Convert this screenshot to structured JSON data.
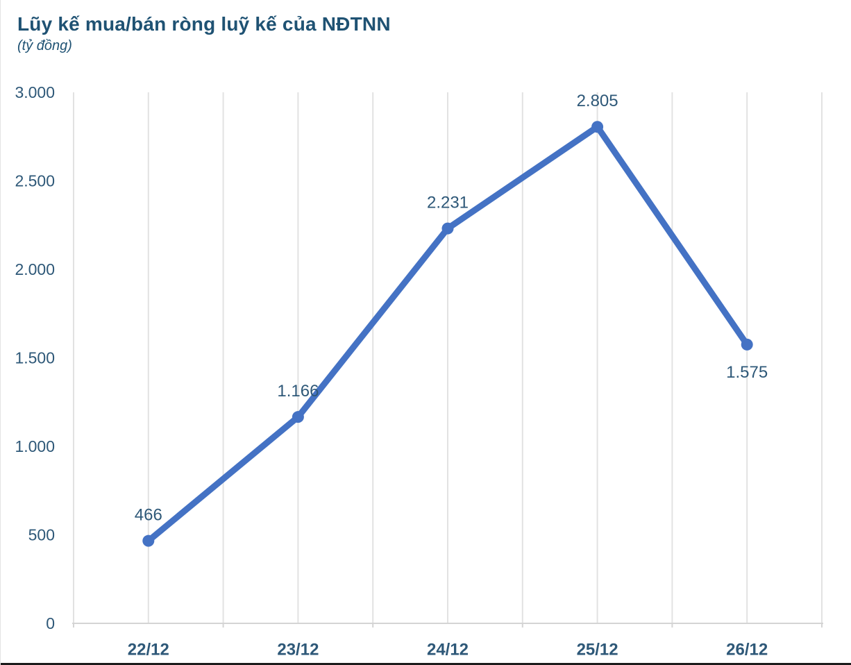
{
  "header": {
    "title": "Lũy kế mua/bán ròng luỹ kế của NĐTNN",
    "subtitle": "(tỷ đồng)"
  },
  "chart_data": {
    "type": "line",
    "title": "Lũy kế mua/bán ròng luỹ kế của NĐTNN",
    "subtitle": "(tỷ đồng)",
    "xlabel": "",
    "ylabel": "tỷ đồng",
    "categories": [
      "22/12",
      "23/12",
      "24/12",
      "25/12",
      "26/12"
    ],
    "series": [
      {
        "name": "Lũy kế mua/bán ròng của NĐTNN",
        "values": [
          466,
          1166,
          2231,
          2805,
          1575
        ]
      }
    ],
    "point_labels": [
      "466",
      "1.166",
      "2.231",
      "2.805",
      "1.575"
    ],
    "point_label_positions": [
      "above",
      "above",
      "above",
      "above",
      "below"
    ],
    "ylim": [
      0,
      3000
    ],
    "ytick_values": [
      0,
      500,
      1000,
      1500,
      2000,
      2500,
      3000
    ],
    "ytick_labels": [
      "0",
      "500",
      "1.000",
      "1.500",
      "2.000",
      "2.500",
      "3.000"
    ],
    "grid": "vertical-only",
    "legend": "none",
    "colors": {
      "line": "#4472C4",
      "marker": "#4472C4",
      "title": "#1F5273",
      "axis_text": "#2E5878",
      "data_label": "#2E5878",
      "gridline": "#E2E2E2",
      "axis_line": "#D4D4D4"
    }
  }
}
